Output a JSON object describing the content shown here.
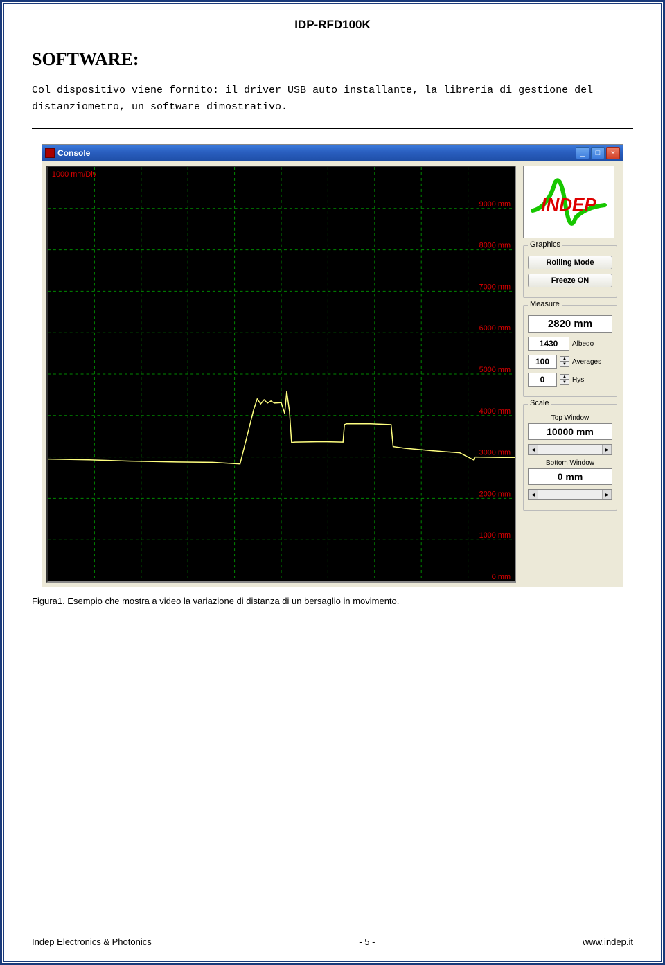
{
  "doc": {
    "header": "IDP-RFD100K",
    "section_title": "SOFTWARE:",
    "body_text": "Col dispositivo viene fornito: il driver USB auto installante, la libreria di gestione del distanziometro, un software dimostrativo.",
    "caption": "Figura1. Esempio che mostra a video la variazione di distanza di un bersaglio in movimento.",
    "footer_left": "Indep Electronics & Photonics",
    "footer_center": "- 5 -",
    "footer_right": "www.indep.it"
  },
  "app": {
    "window_title": "Console",
    "graphics_label": "Graphics",
    "rolling_mode_btn": "Rolling Mode",
    "freeze_btn": "Freeze ON",
    "measure_label": "Measure",
    "measure_value": "2820 mm",
    "albedo_value": "1430",
    "albedo_label": "Albedo",
    "averages_value": "100",
    "averages_label": "Averages",
    "hys_value": "0",
    "hys_label": "Hys",
    "scale_label": "Scale",
    "top_window_label": "Top Window",
    "top_window_value": "10000 mm",
    "bottom_window_label": "Bottom Window",
    "bottom_window_value": "0 mm",
    "logo_text": "INDEP"
  },
  "chart": {
    "y_div_label": "1000 mm/Div",
    "y_ticks": [
      "9000 mm",
      "8000 mm",
      "7000 mm",
      "6000 mm",
      "5000 mm",
      "4000 mm",
      "3000 mm",
      "2000 mm",
      "1000 mm",
      "0 mm"
    ],
    "y_max": 10000,
    "y_min": 0,
    "background": "#000000",
    "grid_color": "#008800",
    "axis_label_color": "#dd0000",
    "trace_color": "#ffff80",
    "trace": [
      [
        0,
        2950
      ],
      [
        60,
        2930
      ],
      [
        120,
        2900
      ],
      [
        180,
        2880
      ],
      [
        240,
        2870
      ],
      [
        280,
        2830
      ],
      [
        300,
        4150
      ],
      [
        305,
        4400
      ],
      [
        310,
        4280
      ],
      [
        315,
        4380
      ],
      [
        320,
        4300
      ],
      [
        325,
        4350
      ],
      [
        330,
        4300
      ],
      [
        340,
        4310
      ],
      [
        345,
        4050
      ],
      [
        348,
        4580
      ],
      [
        352,
        4100
      ],
      [
        355,
        3350
      ],
      [
        360,
        3360
      ],
      [
        400,
        3370
      ],
      [
        430,
        3360
      ],
      [
        432,
        3780
      ],
      [
        435,
        3800
      ],
      [
        470,
        3800
      ],
      [
        500,
        3780
      ],
      [
        503,
        3250
      ],
      [
        520,
        3210
      ],
      [
        560,
        3150
      ],
      [
        600,
        3100
      ],
      [
        620,
        2930
      ],
      [
        622,
        3000
      ],
      [
        660,
        2990
      ],
      [
        680,
        2990
      ],
      [
        680,
        2990
      ]
    ],
    "x_max": 680
  },
  "colors": {
    "page_border": "#1a3a7a",
    "panel_bg": "#ece9d8",
    "titlebar_start": "#3c7bdc",
    "titlebar_end": "#1f4fa8",
    "logo_green": "#17c700",
    "logo_red": "#dd0000"
  }
}
